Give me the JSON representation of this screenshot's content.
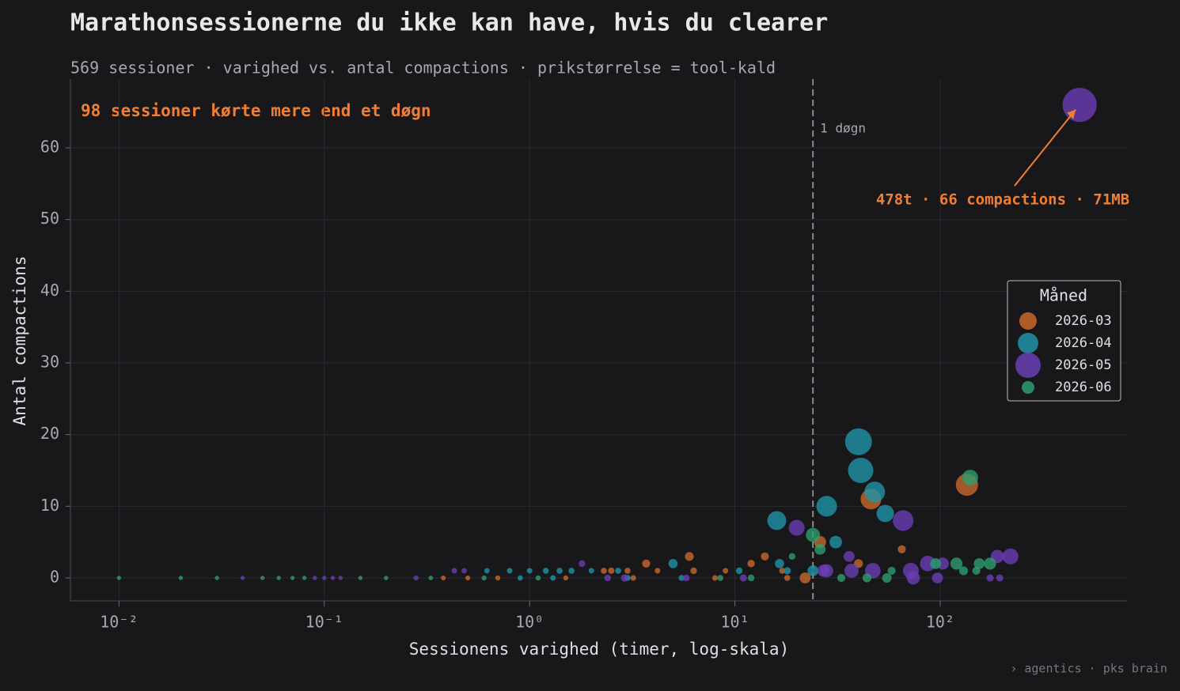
{
  "chart_data": {
    "type": "scatter",
    "title": "Marathonsessionerne du ikke kan have, hvis du clearer",
    "subtitle": "569 sessioner · varighed vs. antal compactions · prikstørrelse = tool-kald",
    "x_label": "Sessionens varighed (timer, log-skala)",
    "y_label": "Antal compactions",
    "footer": "› agentics  ·  pks brain",
    "xscale": "log",
    "xlim": [
      0.0058,
      820
    ],
    "ylim": [
      -3.2,
      69.6
    ],
    "xticks": [
      {
        "value": 0.01,
        "label": "10⁻²"
      },
      {
        "value": 0.1,
        "label": "10⁻¹"
      },
      {
        "value": 1,
        "label": "10⁰"
      },
      {
        "value": 10,
        "label": "10¹"
      },
      {
        "value": 100,
        "label": "10²"
      }
    ],
    "yticks": [
      0,
      10,
      20,
      30,
      40,
      50,
      60
    ],
    "grid": true,
    "legend": {
      "title": "Måned",
      "loc": "center right"
    },
    "corner_note": "98 sessioner kørte mere end et døgn",
    "vline": {
      "x": 24,
      "label": "1 døgn"
    },
    "annotation": {
      "text": "478t · 66 compactions · 71MB",
      "x": 478,
      "y": 66
    },
    "series": [
      {
        "name": "2026-03",
        "color": "#c8692a",
        "x": [
          0.38,
          0.5,
          0.7,
          1.5,
          2.3,
          2.5,
          3,
          3.7,
          4.2,
          6,
          6.3,
          9,
          12,
          14,
          17,
          22,
          26,
          40,
          46,
          65,
          135,
          3.2,
          8,
          18
        ],
        "y": [
          0,
          0,
          0,
          0,
          1,
          1,
          1,
          2,
          1,
          3,
          1,
          1,
          2,
          3,
          1,
          0,
          5,
          2,
          11,
          4,
          13,
          0,
          0,
          0
        ],
        "sizes": [
          6,
          8,
          10,
          8,
          20,
          25,
          20,
          60,
          15,
          80,
          30,
          15,
          45,
          60,
          20,
          150,
          200,
          80,
          760,
          60,
          900,
          15,
          15,
          20
        ]
      },
      {
        "name": "2026-04",
        "color": "#1f94a8",
        "x": [
          0.62,
          0.8,
          1,
          1.2,
          1.4,
          1.6,
          2,
          2.7,
          5,
          5.5,
          10.5,
          16,
          16.5,
          18,
          28,
          31,
          40,
          41,
          48,
          54,
          24,
          1.3,
          0.9,
          3
        ],
        "y": [
          1,
          1,
          1,
          1,
          1,
          1,
          1,
          1,
          2,
          0,
          1,
          8,
          2,
          1,
          10,
          5,
          19,
          15,
          12,
          9,
          1,
          0,
          0,
          0
        ],
        "sizes": [
          12,
          15,
          15,
          20,
          20,
          20,
          15,
          20,
          90,
          20,
          30,
          620,
          90,
          40,
          760,
          220,
          1400,
          1220,
          760,
          500,
          150,
          15,
          12,
          20
        ]
      },
      {
        "name": "2026-05",
        "color": "#6a3fb5",
        "x": [
          0.04,
          0.09,
          0.1,
          0.11,
          0.12,
          0.28,
          0.43,
          0.48,
          1.8,
          2.4,
          2.9,
          5.8,
          11,
          20,
          27,
          28,
          36,
          37,
          47,
          66,
          72,
          74,
          87,
          97,
          103,
          190,
          220,
          175,
          195,
          478
        ],
        "y": [
          0,
          0,
          0,
          0,
          0,
          0,
          1,
          1,
          2,
          0,
          0,
          0,
          0,
          7,
          1,
          1,
          3,
          1,
          1,
          8,
          1,
          0,
          2,
          0,
          2,
          3,
          3,
          0,
          0,
          66
        ],
        "sizes": [
          3,
          3,
          3,
          3,
          3,
          8,
          15,
          12,
          30,
          30,
          40,
          30,
          40,
          400,
          200,
          250,
          150,
          300,
          380,
          760,
          400,
          250,
          380,
          150,
          200,
          250,
          400,
          40,
          40,
          2400
        ]
      },
      {
        "name": "2026-06",
        "color": "#2e9e6e",
        "x": [
          0.01,
          0.02,
          0.03,
          0.05,
          0.06,
          0.07,
          0.08,
          0.15,
          0.2,
          0.33,
          0.6,
          1.1,
          8.5,
          12,
          19,
          24,
          26,
          33,
          44,
          55,
          58,
          95,
          120,
          130,
          140,
          150,
          155,
          175
        ],
        "y": [
          0,
          0,
          0,
          0,
          0,
          0,
          0,
          0,
          0,
          0,
          0,
          0,
          0,
          0,
          3,
          6,
          4,
          0,
          0,
          0,
          1,
          2,
          2,
          1,
          14,
          1,
          2,
          2
        ],
        "sizes": [
          3,
          3,
          3,
          3,
          3,
          3,
          3,
          3,
          4,
          5,
          8,
          10,
          20,
          30,
          30,
          300,
          150,
          60,
          80,
          100,
          60,
          150,
          200,
          80,
          400,
          60,
          150,
          200
        ]
      }
    ]
  }
}
